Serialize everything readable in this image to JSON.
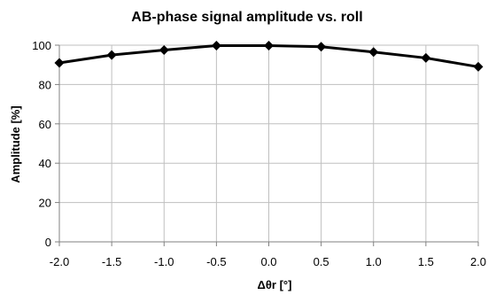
{
  "chart_data": {
    "type": "line",
    "title": "AB-phase signal amplitude vs. roll",
    "xlabel": "Δθr [°]",
    "ylabel": "Amplitude [%]",
    "x": [
      -2.0,
      -1.5,
      -1.0,
      -0.5,
      0.0,
      0.5,
      1.0,
      1.5,
      2.0
    ],
    "x_tick_labels": [
      "-2.0",
      "-1.5",
      "-1.0",
      "-0.5",
      "0.0",
      "0.5",
      "1.0",
      "1.5",
      "2.0"
    ],
    "y_ticks": [
      0,
      20,
      40,
      60,
      80,
      100
    ],
    "y_tick_labels": [
      "0",
      "20",
      "40",
      "60",
      "80",
      "100"
    ],
    "xlim": [
      -2.0,
      2.0
    ],
    "ylim": [
      0,
      100
    ],
    "grid": true,
    "series": [
      {
        "values": [
          91,
          95,
          97.5,
          99.8,
          99.8,
          99.2,
          96.5,
          93.5,
          89
        ]
      }
    ],
    "colors": {
      "series": "#000000",
      "grid": "#bfbfbf",
      "axis": "#808080"
    }
  }
}
